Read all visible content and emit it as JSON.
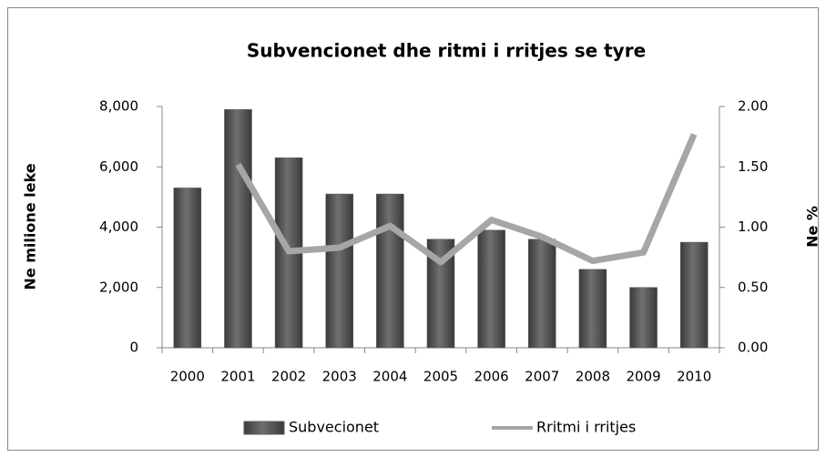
{
  "chart_data": {
    "type": "bar-line",
    "title": "Subvencionet dhe ritmi i rritjes se tyre",
    "ylabel": "Ne milione leke",
    "y2label": "Ne %",
    "categories": [
      "2000",
      "2001",
      "2002",
      "2003",
      "2004",
      "2005",
      "2006",
      "2007",
      "2008",
      "2009",
      "2010"
    ],
    "series": [
      {
        "name": "Subvecionet",
        "type": "bar",
        "color": "#595959",
        "values": [
          5300,
          7900,
          6300,
          5100,
          5100,
          3600,
          3900,
          3600,
          2600,
          2000,
          3500
        ]
      },
      {
        "name": "Rritmi i rritjes",
        "type": "line",
        "axis": "y2",
        "color": "#a6a6a6",
        "values": [
          null,
          1.52,
          0.8,
          0.83,
          1.01,
          0.71,
          1.06,
          0.92,
          0.72,
          0.79,
          1.77
        ]
      }
    ],
    "ylim": [
      0,
      8000
    ],
    "yticks": [
      0,
      {
        "value": 2000,
        "label": "2,000"
      },
      {
        "value": 4000,
        "label": "4,000"
      },
      {
        "value": 6000,
        "label": "6,000"
      },
      {
        "value": 8000,
        "label": "8,000"
      }
    ],
    "y2lim": [
      0,
      2
    ],
    "y2ticks": [
      {
        "value": 0,
        "label": "0.00"
      },
      {
        "value": 0.5,
        "label": "0.50"
      },
      {
        "value": 1,
        "label": "1.00"
      },
      {
        "value": 1.5,
        "label": "1.50"
      },
      {
        "value": 2,
        "label": "2.00"
      }
    ],
    "legend": "bottom"
  }
}
